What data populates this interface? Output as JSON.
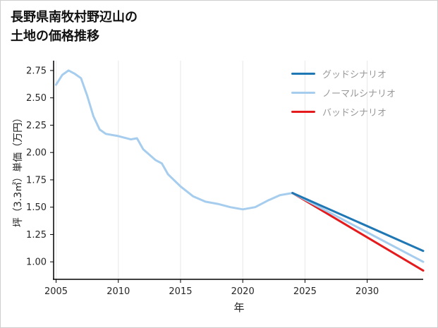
{
  "chart_data": {
    "type": "line",
    "title": "長野県南牧村野辺山の土地の価格推移",
    "title_lines": [
      "長野県南牧村野辺山の",
      "土地の価格推移"
    ],
    "xlabel": "年",
    "ylabel": "坪（3.3㎡）単価（万円）",
    "xlim": [
      2004.8,
      2034.5
    ],
    "ylim": [
      0.84,
      2.84
    ],
    "xticks": [
      2005,
      2010,
      2015,
      2020,
      2025,
      2030
    ],
    "yticks": [
      1.0,
      1.25,
      1.5,
      1.75,
      2.0,
      2.25,
      2.5,
      2.75
    ],
    "grid": "vertical-only",
    "legend_position": "top-right-inside",
    "history": {
      "color": "#a6cdee",
      "x": [
        2005,
        2005.5,
        2006,
        2006.5,
        2007,
        2007.5,
        2008,
        2008.5,
        2009,
        2010,
        2011,
        2011.5,
        2012,
        2013,
        2013.5,
        2014,
        2015,
        2016,
        2017,
        2018,
        2019,
        2020,
        2021,
        2022,
        2023,
        2024
      ],
      "values": [
        2.62,
        2.71,
        2.75,
        2.72,
        2.68,
        2.52,
        2.33,
        2.21,
        2.17,
        2.15,
        2.12,
        2.13,
        2.03,
        1.93,
        1.9,
        1.8,
        1.69,
        1.6,
        1.55,
        1.53,
        1.5,
        1.48,
        1.5,
        1.56,
        1.61,
        1.63
      ]
    },
    "scenarios": [
      {
        "name": "グッドシナリオ",
        "color": "#1f77b4",
        "x": [
          2024,
          2034.5
        ],
        "values": [
          1.63,
          1.1
        ]
      },
      {
        "name": "ノーマルシナリオ",
        "color": "#a6cdee",
        "x": [
          2024,
          2034.5
        ],
        "values": [
          1.63,
          1.0
        ]
      },
      {
        "name": "バッドシナリオ",
        "color": "#e41a1c",
        "x": [
          2024,
          2034.5
        ],
        "values": [
          1.63,
          0.92
        ]
      }
    ]
  }
}
